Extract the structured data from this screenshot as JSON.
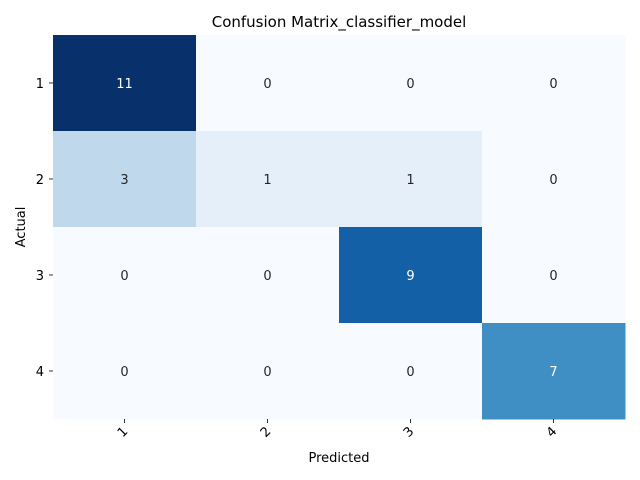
{
  "chart_data": {
    "type": "heatmap",
    "title": "Confusion Matrix_classifier_model",
    "xlabel": "Predicted",
    "ylabel": "Actual",
    "x_categories": [
      "1",
      "2",
      "3",
      "4"
    ],
    "y_categories": [
      "1",
      "2",
      "3",
      "4"
    ],
    "values": [
      [
        11,
        0,
        0,
        0
      ],
      [
        3,
        1,
        1,
        0
      ],
      [
        0,
        0,
        9,
        0
      ],
      [
        0,
        0,
        0,
        7
      ]
    ],
    "colormap": "Blues",
    "value_range": [
      0,
      11
    ],
    "x_tick_rotation_deg": 45,
    "colorbar": false,
    "grid": false
  }
}
